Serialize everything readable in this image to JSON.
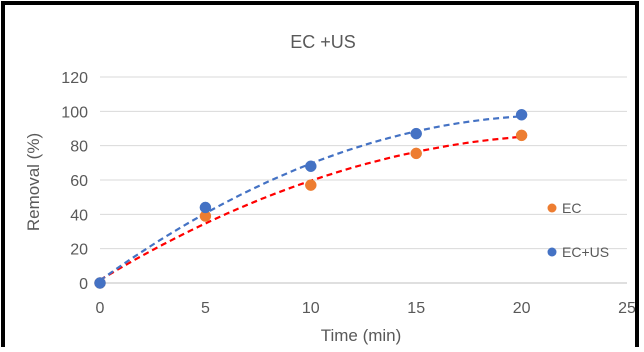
{
  "chart_data": {
    "type": "scatter",
    "title": "EC +US",
    "xlabel": "Time (min)",
    "ylabel": "Removal (%)",
    "xlim": [
      0,
      25
    ],
    "ylim": [
      0,
      120
    ],
    "xticks": [
      0,
      5,
      10,
      15,
      20,
      25
    ],
    "yticks": [
      0,
      20,
      40,
      60,
      80,
      100,
      120
    ],
    "grid": "horizontal",
    "legend_position": "right",
    "series": [
      {
        "name": "EC",
        "color": "#ED7D31",
        "trendline_color": "#FF0000",
        "x": [
          0,
          5,
          10,
          15,
          20
        ],
        "y": [
          0,
          39,
          57,
          75.5,
          86
        ]
      },
      {
        "name": "EC+US",
        "color": "#4472C4",
        "trendline_color": "#4472C4",
        "x": [
          0,
          5,
          10,
          15,
          20
        ],
        "y": [
          0,
          44,
          68,
          87,
          98
        ]
      }
    ]
  }
}
